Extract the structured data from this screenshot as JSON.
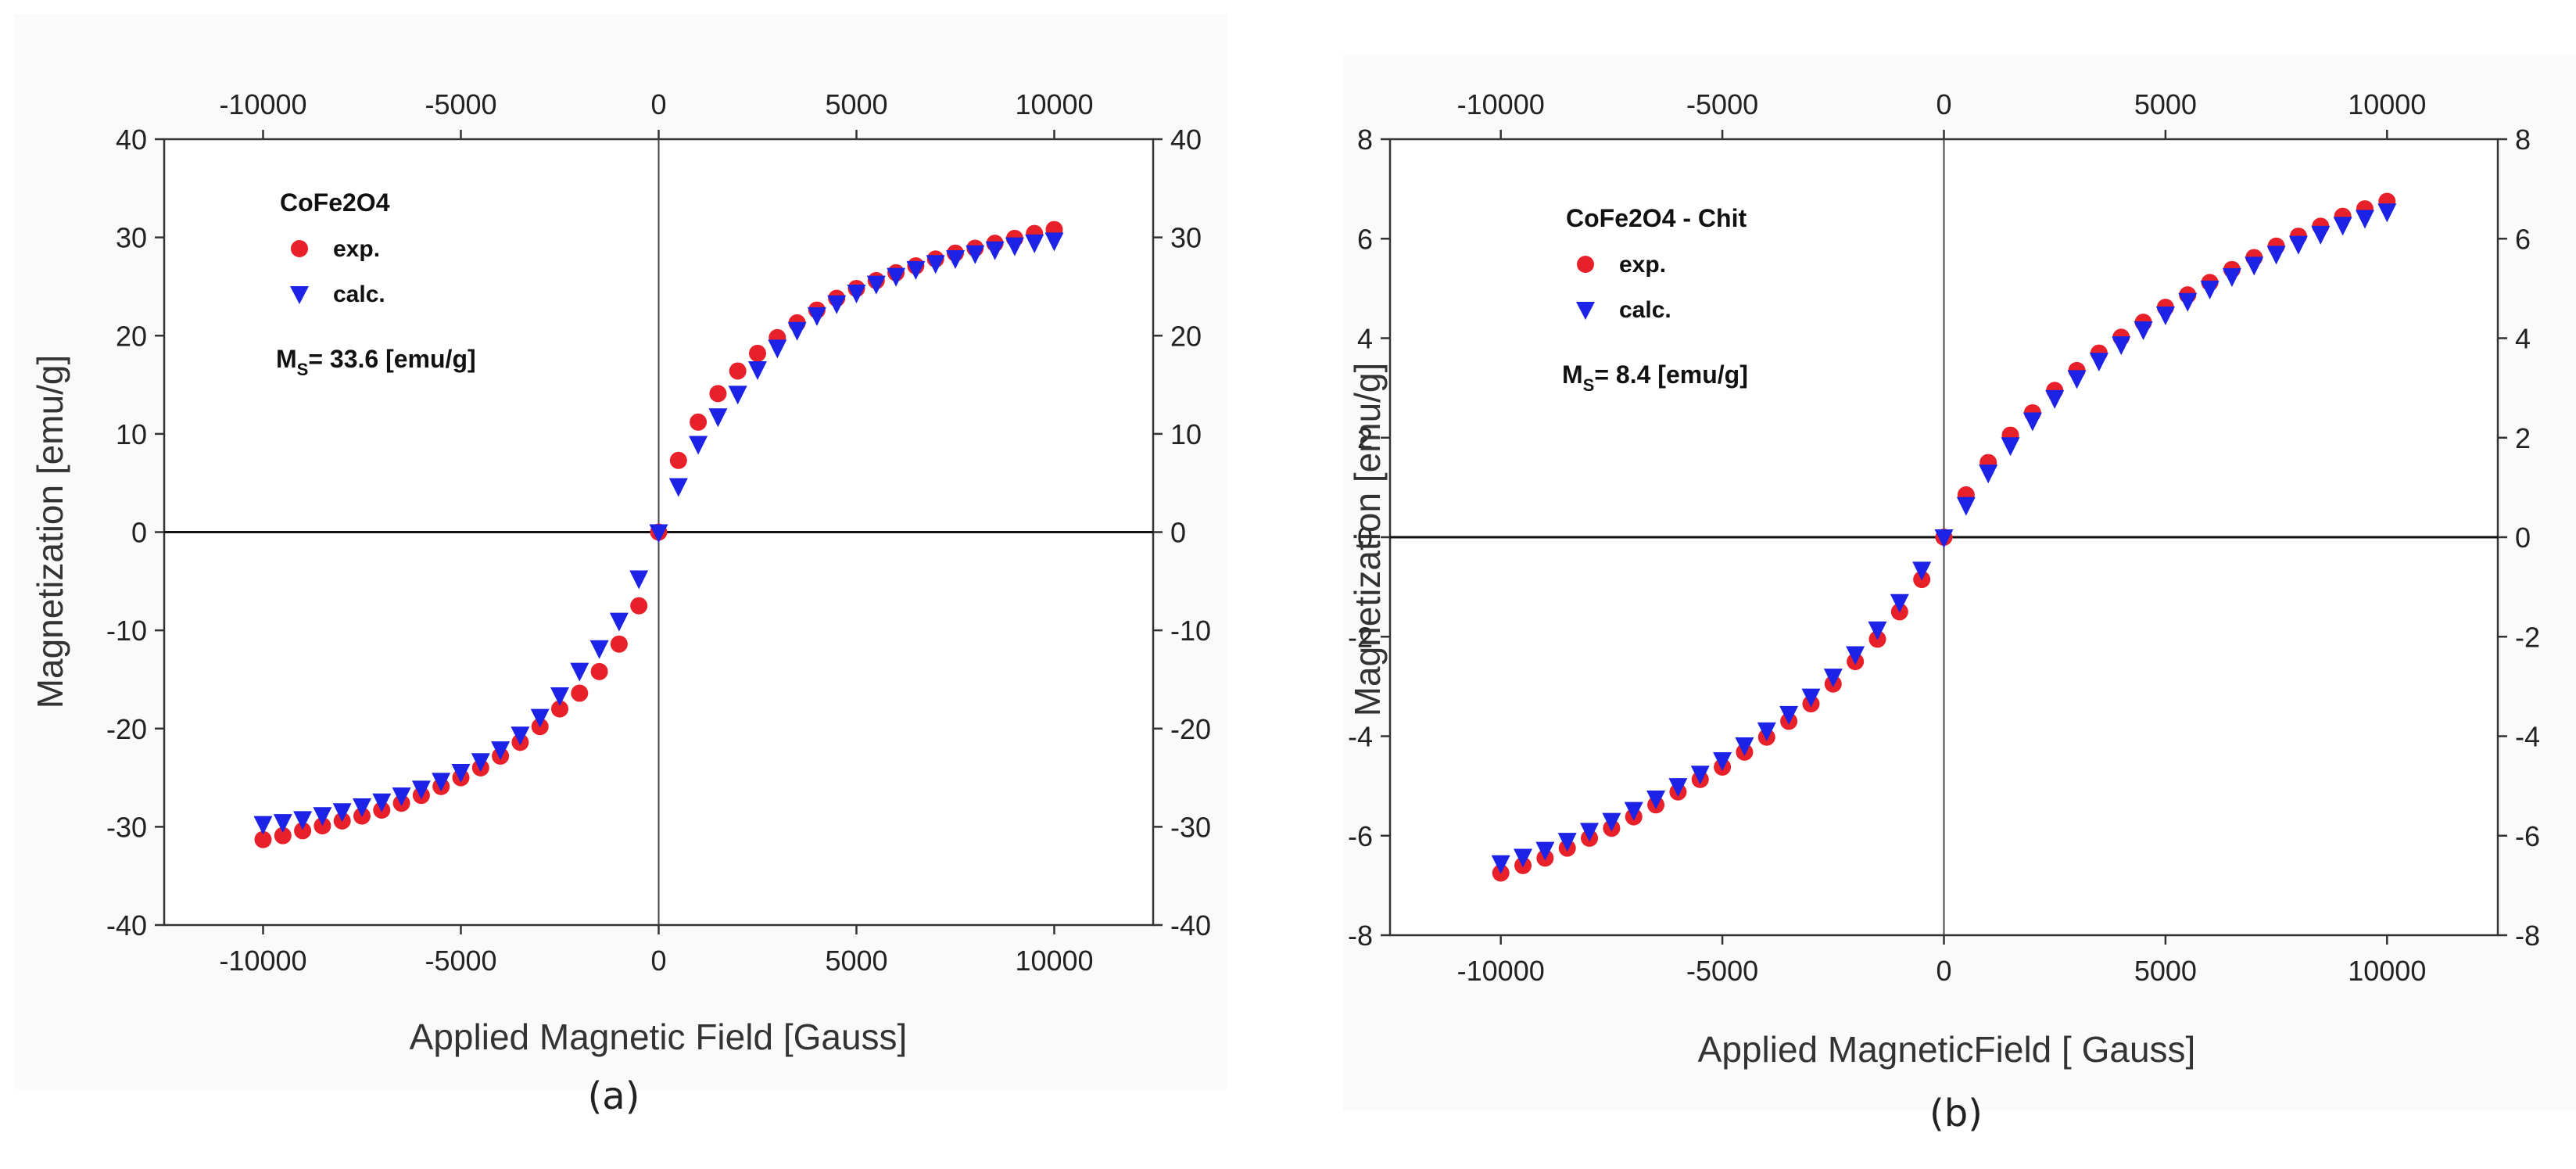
{
  "chart_data": [
    {
      "type": "scatter",
      "panel_label": "(a)",
      "xlabel": "Applied Magnetic Field [Gauss]",
      "ylabel": "Magnetization [emu/g]",
      "xlim": [
        -12500,
        12500
      ],
      "ylim": [
        -40,
        40
      ],
      "xticks": [
        -10000,
        -5000,
        0,
        5000,
        10000
      ],
      "yticks": [
        -40,
        -30,
        -20,
        -10,
        0,
        10,
        20,
        30,
        40
      ],
      "top_axis_ticks": [
        -10000,
        -5000,
        0,
        5000,
        10000
      ],
      "right_axis_ticks": [
        -40,
        -30,
        -20,
        -10,
        0,
        10,
        20,
        30,
        40
      ],
      "legend": {
        "material": "CoFe2O4",
        "entries": [
          {
            "label": "exp.",
            "marker": "circle",
            "color": "#e8202a"
          },
          {
            "label": "calc.",
            "marker": "triangle-down",
            "color": "#1c22e6"
          }
        ],
        "ms_prefix": "M",
        "ms_sub": "S",
        "ms_text": "= 33.6 [emu/g]"
      },
      "x": [
        -10000,
        -9500,
        -9000,
        -8500,
        -8000,
        -7500,
        -7000,
        -6500,
        -6000,
        -5500,
        -5000,
        -4500,
        -4000,
        -3500,
        -3000,
        -2500,
        -2000,
        -1500,
        -1000,
        -500,
        0,
        500,
        1000,
        1500,
        2000,
        2500,
        3000,
        3500,
        4000,
        4500,
        5000,
        5500,
        6000,
        6500,
        7000,
        7500,
        8000,
        8500,
        9000,
        9500,
        10000
      ],
      "series": [
        {
          "name": "exp.",
          "color": "#e8202a",
          "marker": "circle",
          "values": [
            -31.3,
            -30.9,
            -30.4,
            -29.9,
            -29.4,
            -28.9,
            -28.3,
            -27.6,
            -26.8,
            -25.9,
            -25.0,
            -24.0,
            -22.8,
            -21.4,
            -19.8,
            -18.0,
            -16.4,
            -14.2,
            -11.4,
            -7.5,
            0,
            7.3,
            11.2,
            14.1,
            16.4,
            18.2,
            19.8,
            21.3,
            22.6,
            23.8,
            24.8,
            25.6,
            26.4,
            27.1,
            27.8,
            28.4,
            28.9,
            29.4,
            29.9,
            30.4,
            30.8
          ]
        },
        {
          "name": "calc.",
          "color": "#1c22e6",
          "marker": "triangle-down",
          "values": [
            -29.7,
            -29.5,
            -29.2,
            -28.8,
            -28.4,
            -27.9,
            -27.4,
            -26.8,
            -26.1,
            -25.3,
            -24.4,
            -23.3,
            -22.1,
            -20.6,
            -18.8,
            -16.6,
            -14.1,
            -11.8,
            -9.0,
            -4.7,
            0,
            4.7,
            9.0,
            11.8,
            14.1,
            16.6,
            18.8,
            20.6,
            22.1,
            23.3,
            24.4,
            25.3,
            26.1,
            26.8,
            27.4,
            27.9,
            28.4,
            28.8,
            29.2,
            29.5,
            29.7
          ]
        }
      ]
    },
    {
      "type": "scatter",
      "panel_label": "(b)",
      "xlabel": "Applied MagneticField [ Gauss]",
      "ylabel": "Magnetization [emu/g]",
      "xlim": [
        -12500,
        12500
      ],
      "ylim": [
        -8,
        8
      ],
      "xticks": [
        -10000,
        -5000,
        0,
        5000,
        10000
      ],
      "yticks": [
        -8,
        -6,
        -4,
        -2,
        0,
        2,
        4,
        6,
        8
      ],
      "top_axis_ticks": [
        -10000,
        -5000,
        0,
        5000,
        10000
      ],
      "right_axis_ticks": [
        -8,
        -6,
        -4,
        -2,
        0,
        2,
        4,
        6,
        8
      ],
      "legend": {
        "material": "CoFe2O4 - Chit",
        "entries": [
          {
            "label": "exp.",
            "marker": "circle",
            "color": "#e8202a"
          },
          {
            "label": "calc.",
            "marker": "triangle-down",
            "color": "#1c22e6"
          }
        ],
        "ms_prefix": "M",
        "ms_sub": "S",
        "ms_text": "= 8.4 [emu/g]"
      },
      "x": [
        -10000,
        -9500,
        -9000,
        -8500,
        -8000,
        -7500,
        -7000,
        -6500,
        -6000,
        -5500,
        -5000,
        -4500,
        -4000,
        -3500,
        -3000,
        -2500,
        -2000,
        -1500,
        -1000,
        -500,
        0,
        500,
        1000,
        1500,
        2000,
        2500,
        3000,
        3500,
        4000,
        4500,
        5000,
        5500,
        6000,
        6500,
        7000,
        7500,
        8000,
        8500,
        9000,
        9500,
        10000
      ],
      "series": [
        {
          "name": "exp.",
          "color": "#e8202a",
          "marker": "circle",
          "values": [
            -6.75,
            -6.6,
            -6.45,
            -6.25,
            -6.05,
            -5.85,
            -5.62,
            -5.38,
            -5.12,
            -4.87,
            -4.62,
            -4.32,
            -4.02,
            -3.7,
            -3.35,
            -2.95,
            -2.5,
            -2.05,
            -1.5,
            -0.85,
            0,
            0.85,
            1.5,
            2.05,
            2.5,
            2.95,
            3.35,
            3.7,
            4.02,
            4.32,
            4.62,
            4.87,
            5.12,
            5.38,
            5.62,
            5.85,
            6.05,
            6.25,
            6.45,
            6.6,
            6.75
          ]
        },
        {
          "name": "calc.",
          "color": "#1c22e6",
          "marker": "triangle-down",
          "values": [
            -6.55,
            -6.42,
            -6.28,
            -6.1,
            -5.9,
            -5.7,
            -5.48,
            -5.25,
            -5.0,
            -4.75,
            -4.48,
            -4.18,
            -3.88,
            -3.55,
            -3.2,
            -2.8,
            -2.35,
            -1.85,
            -1.3,
            -0.65,
            0,
            0.65,
            1.3,
            1.85,
            2.35,
            2.8,
            3.2,
            3.55,
            3.88,
            4.18,
            4.48,
            4.75,
            5.0,
            5.25,
            5.48,
            5.7,
            5.9,
            6.1,
            6.28,
            6.42,
            6.55
          ]
        }
      ]
    }
  ]
}
